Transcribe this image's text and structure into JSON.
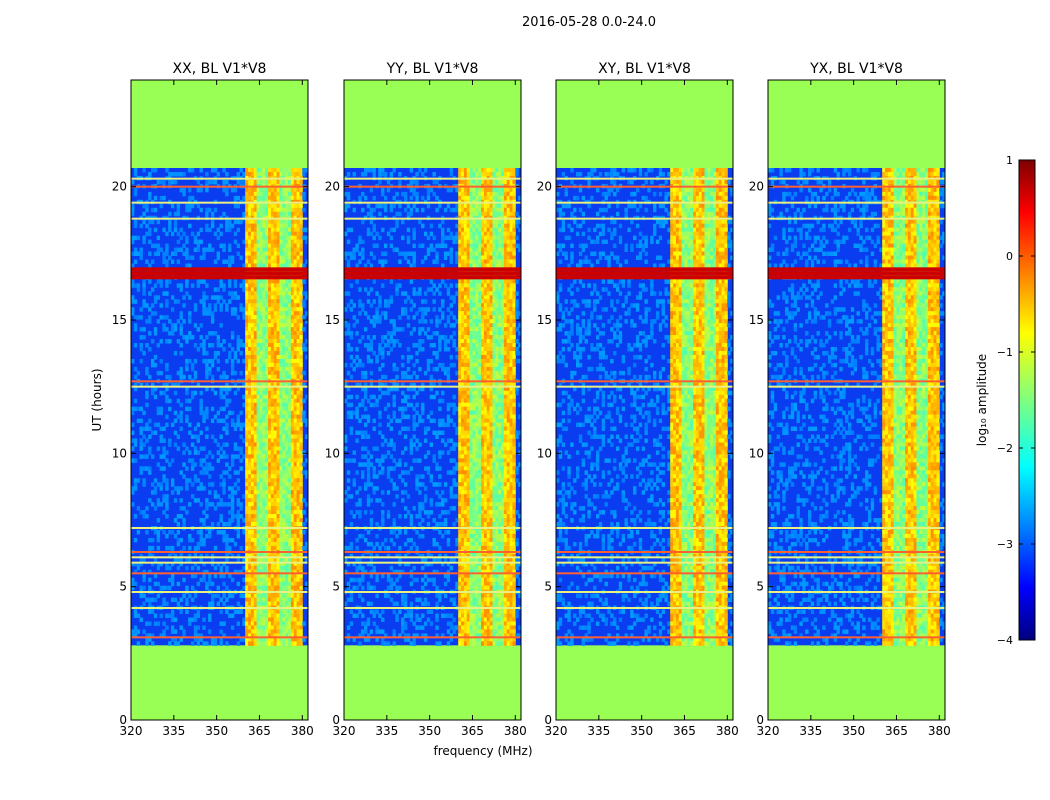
{
  "suptitle": "2016-05-28 0.0-24.0",
  "chart_data": {
    "type": "heatmap",
    "x_range": [
      320,
      382
    ],
    "y_range": [
      0,
      24
    ],
    "xticks": [
      320,
      335,
      350,
      365,
      380
    ],
    "yticks": [
      0,
      5,
      10,
      15,
      20
    ],
    "xlabel": "frequency (MHz)",
    "ylabel": "UT (hours)",
    "data_time_range_hours": [
      2.8,
      20.7
    ],
    "blank_fill_color": "#99ff55",
    "high_signal_band_mhz": [
      360,
      380
    ],
    "panels": [
      {
        "title": "XX, BL V1*V8",
        "band_mhz": [
          360,
          380
        ]
      },
      {
        "title": "YY, BL V1*V8",
        "band_mhz": [
          360,
          380
        ]
      },
      {
        "title": "XY, BL V1*V8",
        "band_mhz": [
          360,
          380
        ]
      },
      {
        "title": "YX, BL V1*V8",
        "band_mhz": [
          360,
          380
        ]
      }
    ],
    "rfi_time_hours": [
      3.1,
      4.2,
      4.8,
      5.5,
      5.9,
      6.1,
      6.3,
      7.2,
      12.5,
      12.7,
      16.6,
      16.75,
      16.9,
      18.8,
      19.4,
      20.0,
      20.3
    ],
    "colorbar": {
      "label": "log₁₀ amplitude",
      "range": [
        -4,
        1
      ],
      "ticks": [
        1,
        0,
        -1,
        -2,
        -3,
        -4
      ],
      "colormap": "jet"
    }
  }
}
